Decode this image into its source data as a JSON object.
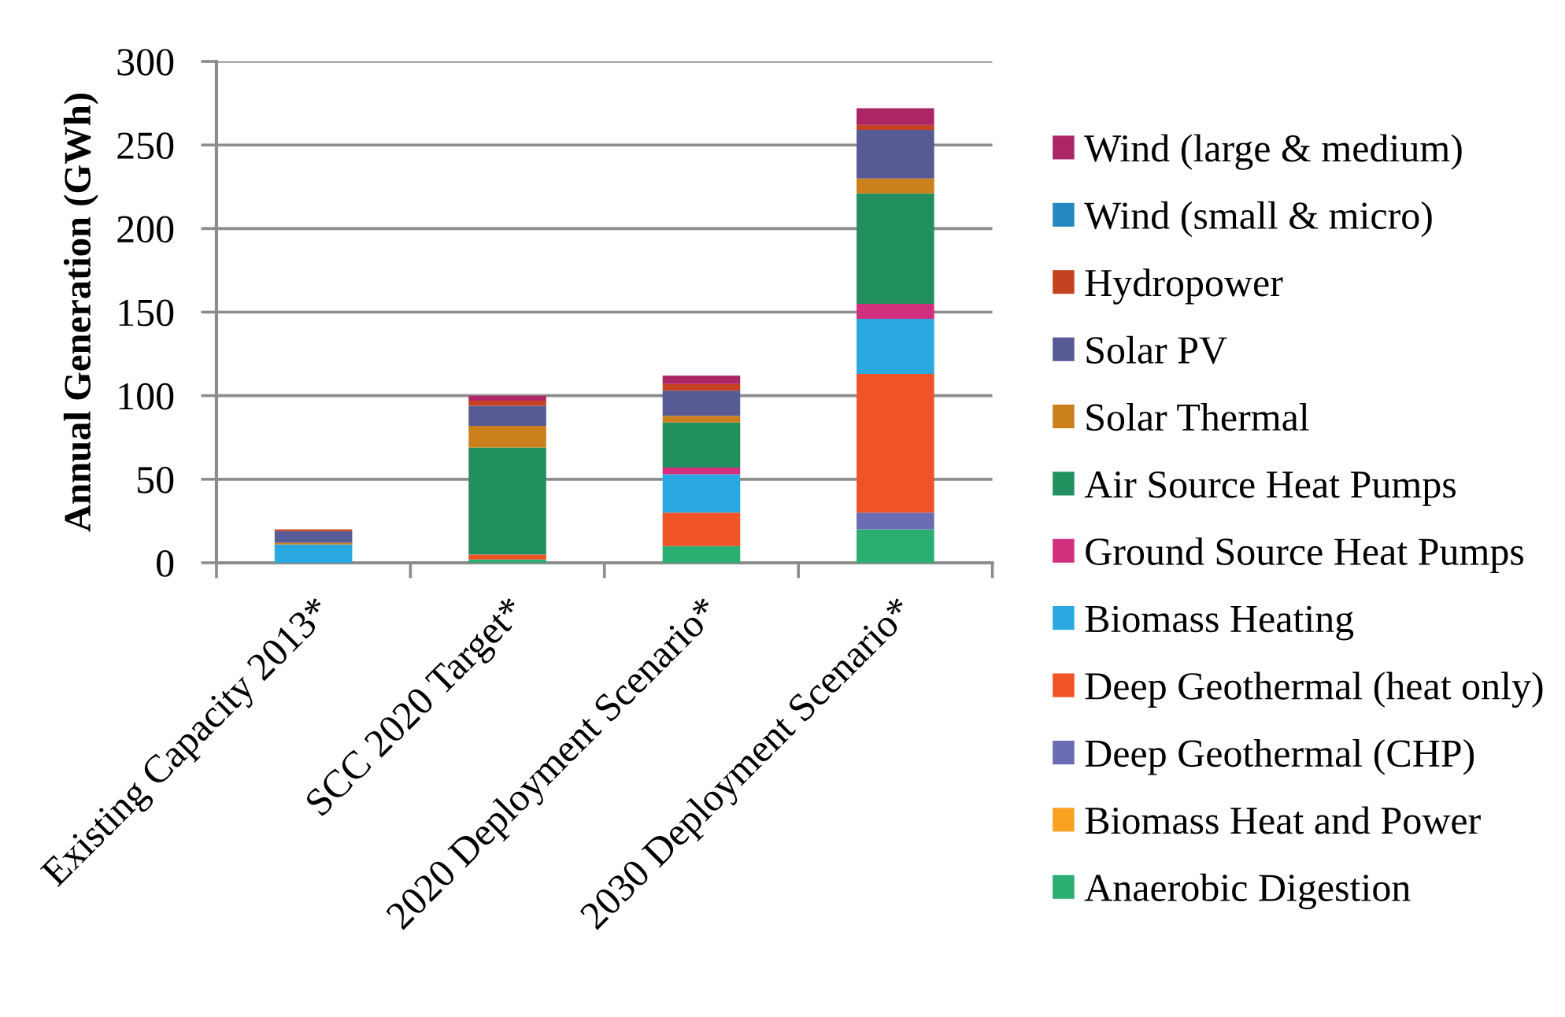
{
  "chart_data": {
    "type": "bar",
    "stacked": true,
    "ylabel": "Annual Generation (GWh)",
    "categories": [
      "Existing Capacity 2013*",
      "SCC 2020 Target*",
      "2020 Deployment Scenario*",
      "2030 Deployment Scenario*"
    ],
    "series": [
      {
        "name": "Anaerobic Digestion",
        "color": "#2bae72",
        "values": [
          null,
          2,
          10,
          20
        ]
      },
      {
        "name": "Biomass Heat and Power",
        "color": "#f8a01f",
        "values": [
          null,
          null,
          null,
          null
        ]
      },
      {
        "name": "Deep Geothermal (CHP)",
        "color": "#6b6cb3",
        "values": [
          null,
          null,
          null,
          10
        ]
      },
      {
        "name": "Deep Geothermal (heat only)",
        "color": "#f05325",
        "values": [
          null,
          3,
          20,
          83
        ]
      },
      {
        "name": "Biomass Heating",
        "color": "#29a9e0",
        "values": [
          11,
          null,
          23,
          33
        ]
      },
      {
        "name": "Ground Source Heat Pumps",
        "color": "#d32f7f",
        "values": [
          null,
          null,
          4,
          9
        ]
      },
      {
        "name": "Air Source Heat Pumps",
        "color": "#22905e",
        "values": [
          null,
          64,
          27,
          66
        ]
      },
      {
        "name": "Solar Thermal",
        "color": "#cc7f1d",
        "values": [
          1,
          13,
          4,
          9
        ]
      },
      {
        "name": "Solar PV",
        "color": "#575b95",
        "values": [
          7,
          12,
          15,
          29
        ]
      },
      {
        "name": "Hydropower",
        "color": "#c4421f",
        "values": [
          1,
          3,
          4,
          3
        ]
      },
      {
        "name": "Wind (small & micro)",
        "color": "#2389c0",
        "values": [
          null,
          null,
          null,
          null
        ]
      },
      {
        "name": "Wind (large & medium)",
        "color": "#ab2567",
        "values": [
          null,
          3,
          5,
          10
        ]
      }
    ],
    "ylim": [
      0,
      300
    ],
    "yticks": [
      0,
      50,
      100,
      150,
      200,
      250,
      300
    ],
    "grid": "y",
    "legend": "right"
  }
}
